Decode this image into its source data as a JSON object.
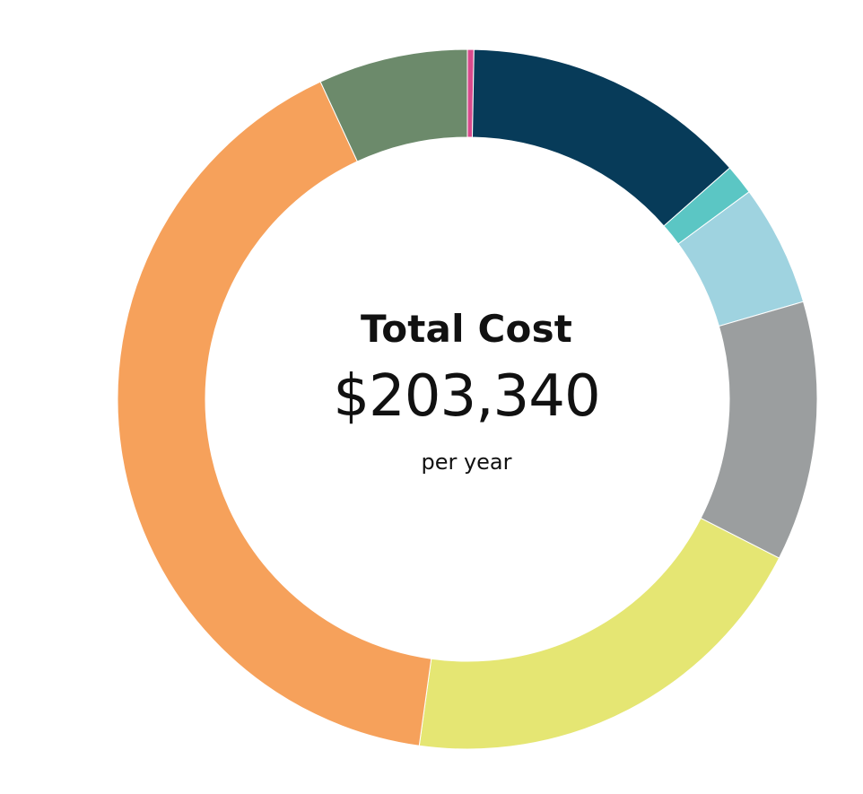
{
  "chart_data": {
    "type": "pie",
    "series": [
      {
        "value": 0.3,
        "color": "#d94a8c"
      },
      {
        "value": 13.2,
        "color": "#073b59"
      },
      {
        "value": 1.4,
        "color": "#5bc6c4"
      },
      {
        "value": 5.6,
        "color": "#9fd3e0"
      },
      {
        "value": 12.0,
        "color": "#9b9e9f"
      },
      {
        "value": 19.7,
        "color": "#e5e673"
      },
      {
        "value": 40.9,
        "color": "#f6a15b"
      },
      {
        "value": 6.9,
        "color": "#6c8a6b"
      }
    ]
  },
  "center": {
    "title": "Total Cost",
    "value": "$203,340",
    "subtitle": "per year"
  }
}
